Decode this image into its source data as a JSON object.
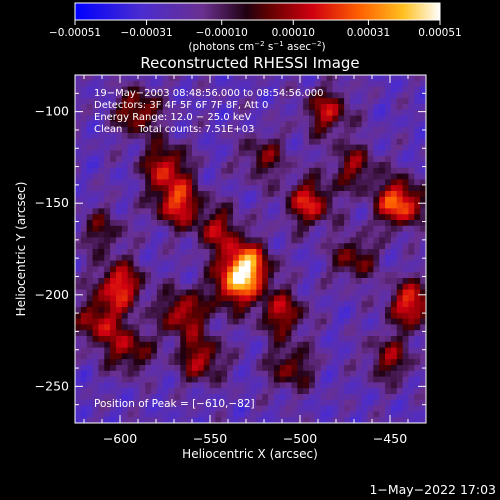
{
  "chart_data": {
    "type": "heatmap",
    "title": "Reconstructed RHESSI Image",
    "xlabel": "Heliocentric X (arcsec)",
    "ylabel": "Heliocentric Y (arcsec)",
    "xlim": [
      -625,
      -430
    ],
    "ylim": [
      -270,
      -80
    ],
    "xticks": [
      -600,
      -550,
      -500,
      -450
    ],
    "yticks": [
      -100,
      -150,
      -200,
      -250
    ],
    "xtick_labels": [
      "−600",
      "−550",
      "−500",
      "−450"
    ],
    "ytick_labels": [
      "−100",
      "−150",
      "−200",
      "−250"
    ],
    "colorbar": {
      "range": [
        -0.00051,
        0.00051
      ],
      "ticks": [
        -0.00051,
        -0.00031,
        -0.0001,
        0.0001,
        0.00031,
        0.00051
      ],
      "tick_labels": [
        "−0.00051",
        "−0.00031",
        "−0.00010",
        "0.00010",
        "0.00031",
        "0.00051"
      ],
      "unit_text": "(photons cm",
      "unit_exp1": "−2",
      "unit_mid1": " s",
      "unit_exp2": "−1",
      "unit_mid2": " asec",
      "unit_exp3": "−2",
      "unit_end": ")"
    },
    "annotations": [
      "19−May−2003 08:48:56.000 to 08:54:56.000",
      "Detectors: 3F 4F 5F 6F 7F 8F, Att 0",
      "Energy Range: 12.0 − 25.0 keV",
      "Clean     Total counts: 7.51E+03"
    ],
    "peak_label": "Position of Peak = [−610,−82]",
    "sources": [
      {
        "x": -530,
        "y": -185,
        "amp": 1.0
      },
      {
        "x": -537,
        "y": -197,
        "amp": 0.55
      },
      {
        "x": -600,
        "y": -195,
        "amp": 0.7
      },
      {
        "x": -612,
        "y": -215,
        "amp": 0.55
      },
      {
        "x": -595,
        "y": -230,
        "amp": 0.5
      },
      {
        "x": -568,
        "y": -150,
        "amp": 0.7
      },
      {
        "x": -575,
        "y": -130,
        "amp": 0.6
      },
      {
        "x": -590,
        "y": -100,
        "amp": 0.55
      },
      {
        "x": -545,
        "y": -165,
        "amp": 0.5
      },
      {
        "x": -495,
        "y": -150,
        "amp": 0.65
      },
      {
        "x": -485,
        "y": -100,
        "amp": 0.55
      },
      {
        "x": -470,
        "y": -130,
        "amp": 0.45
      },
      {
        "x": -445,
        "y": -150,
        "amp": 0.85
      },
      {
        "x": -438,
        "y": -205,
        "amp": 0.7
      },
      {
        "x": -450,
        "y": -235,
        "amp": 0.45
      },
      {
        "x": -510,
        "y": -210,
        "amp": 0.55
      },
      {
        "x": -505,
        "y": -240,
        "amp": 0.45
      },
      {
        "x": -565,
        "y": -210,
        "amp": 0.6
      },
      {
        "x": -555,
        "y": -235,
        "amp": 0.55
      },
      {
        "x": -520,
        "y": -125,
        "amp": 0.4
      },
      {
        "x": -610,
        "y": -165,
        "amp": 0.35
      },
      {
        "x": -470,
        "y": -180,
        "amp": 0.45
      }
    ]
  },
  "footer": {
    "timestamp": "1−May−2022 17:03"
  }
}
